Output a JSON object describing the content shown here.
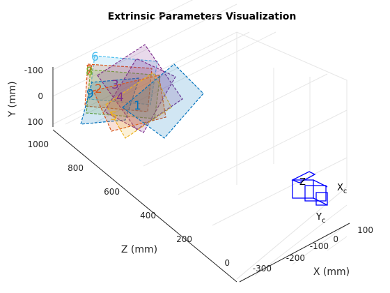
{
  "chart_data": {
    "type": "3d-scatter",
    "title": "Extrinsic Parameters Visualization",
    "xlabel": "X (mm)",
    "ylabel": "Y (mm)",
    "zlabel": "Z (mm)",
    "x_ticks": [
      "-300",
      "-200",
      "-100",
      "0",
      "100"
    ],
    "y_ticks": [
      "-100",
      "0",
      "100"
    ],
    "z_ticks": [
      "0",
      "200",
      "400",
      "600",
      "800",
      "1000"
    ],
    "camera": {
      "x_label": "X",
      "x_sub": "c",
      "y_label": "Y",
      "y_sub": "c",
      "z_label": "Z",
      "color": "#0000ff"
    },
    "boards": [
      {
        "label": "1",
        "color": "#0072bd"
      },
      {
        "label": "2",
        "color": "#d95319"
      },
      {
        "label": "3",
        "color": "#7e2f8e"
      },
      {
        "label": "4",
        "color": "#7e2f8e"
      },
      {
        "label": "5",
        "color": "#edb120"
      },
      {
        "label": "6",
        "color": "#4dbeee"
      },
      {
        "label": "7",
        "color": "#d95319"
      },
      {
        "label": "8",
        "color": "#77ac30"
      },
      {
        "label": "9",
        "color": "#0072bd"
      }
    ]
  }
}
